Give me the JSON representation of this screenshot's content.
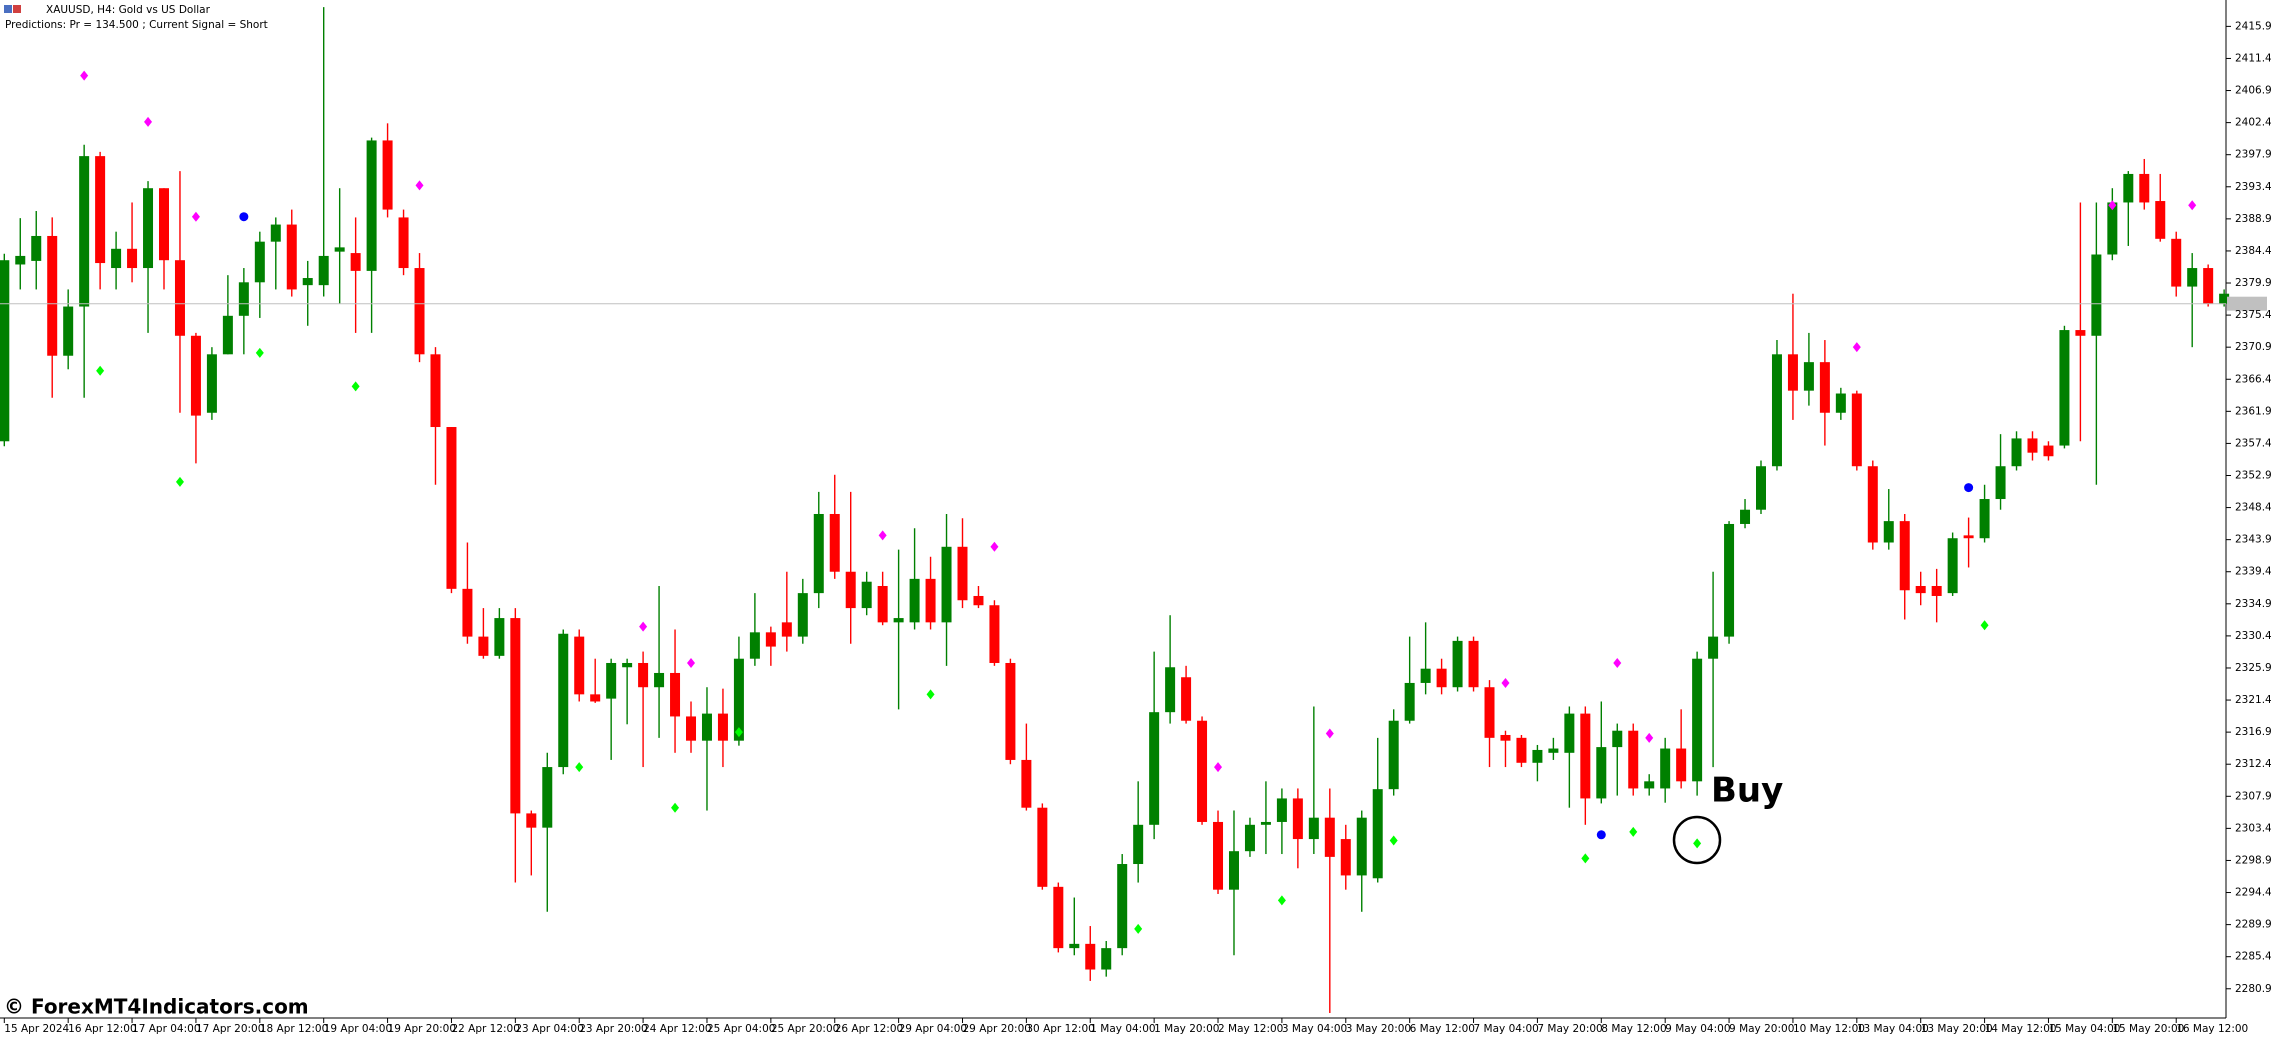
{
  "header": {
    "symbol": "XAUUSD, H4:  Gold vs US Dollar",
    "predictions": "Predictions: Pr = 134.500 ; Current Signal =  Short"
  },
  "annotation": "Buy",
  "watermark": "© ForexMT4Indicators.com",
  "chart_data": {
    "type": "candlestick",
    "up_color": "#008000",
    "down_color": "#ff0000",
    "categories": [
      "15 Apr 2024",
      null,
      null,
      null,
      "16 Apr 12:00",
      null,
      null,
      null,
      "17 Apr 04:00",
      null,
      null,
      null,
      "17 Apr 20:00",
      null,
      null,
      null,
      "18 Apr 12:00",
      null,
      null,
      null,
      "19 Apr 04:00",
      null,
      null,
      null,
      "19 Apr 20:00",
      null,
      null,
      null,
      "22 Apr 12:00",
      null,
      null,
      null,
      "23 Apr 04:00",
      null,
      null,
      null,
      "23 Apr 20:00",
      null,
      null,
      null,
      "24 Apr 12:00",
      null,
      null,
      null,
      "25 Apr 04:00",
      null,
      null,
      null,
      "25 Apr 20:00",
      null,
      null,
      null,
      "26 Apr 12:00",
      null,
      null,
      null,
      "29 Apr 04:00",
      null,
      null,
      null,
      "29 Apr 20:00",
      null,
      null,
      null,
      "30 Apr 12:00",
      null,
      null,
      null,
      "1 May 04:00",
      null,
      null,
      null,
      "1 May 20:00",
      null,
      null,
      null,
      "2 May 12:00",
      null,
      null,
      null,
      "3 May 04:00",
      null,
      null,
      null,
      "3 May 20:00",
      null,
      null,
      null,
      "6 May 12:00",
      null,
      null,
      null,
      "7 May 04:00",
      null,
      null,
      null,
      "7 May 20:00",
      null,
      null,
      null,
      "8 May 12:00",
      null,
      null,
      null,
      "9 May 04:00",
      null,
      null,
      null,
      "9 May 20:00",
      null,
      null,
      null,
      "10 May 12:00",
      null,
      null,
      null,
      "13 May 04:00",
      null,
      null,
      null,
      "13 May 20:00",
      null,
      null,
      null,
      "14 May 12:00",
      null,
      null,
      null,
      "15 May 04:00",
      null,
      null,
      null,
      "15 May 20:00",
      null,
      null,
      null,
      "16 May 12:00",
      null,
      null,
      null
    ],
    "open": [
      2357.7,
      2382.5,
      2383.0,
      2386.5,
      2369.7,
      2376.6,
      2397.7,
      2382.0,
      2384.7,
      2382.0,
      2393.2,
      2383.1,
      2372.5,
      2361.7,
      2369.9,
      2375.3,
      2380.0,
      2385.7,
      2388.1,
      2379.6,
      2379.6,
      2384.3,
      2384.1,
      2381.6,
      2399.9,
      2389.1,
      2382.0,
      2369.9,
      2359.7,
      2337.0,
      2330.3,
      2327.6,
      2332.9,
      2305.5,
      2303.5,
      2312.0,
      2330.3,
      2322.2,
      2321.6,
      2326.0,
      2326.6,
      2323.2,
      2325.2,
      2319.1,
      2315.7,
      2319.5,
      2315.7,
      2327.2,
      2330.9,
      2332.3,
      2330.3,
      2336.4,
      2347.5,
      2339.4,
      2334.3,
      2337.4,
      2332.3,
      2332.3,
      2338.4,
      2332.3,
      2342.9,
      2336.0,
      2334.7,
      2326.6,
      2313.0,
      2306.3,
      2295.2,
      2286.6,
      2287.2,
      2283.6,
      2286.6,
      2298.4,
      2303.9,
      2319.7,
      2324.6,
      2318.5,
      2304.3,
      2294.8,
      2300.2,
      2303.9,
      2304.3,
      2307.6,
      2301.9,
      2304.9,
      2301.9,
      2296.8,
      2296.4,
      2308.9,
      2318.5,
      2323.8,
      2325.8,
      2323.2,
      2329.7,
      2323.2,
      2316.5,
      2316.1,
      2312.6,
      2314.0,
      2314.0,
      2319.5,
      2307.6,
      2314.8,
      2317.1,
      2309.0,
      2309.0,
      2314.6,
      2310.0,
      2327.2,
      2330.3,
      2346.1,
      2348.1,
      2354.2,
      2369.9,
      2364.8,
      2368.8,
      2361.7,
      2364.4,
      2354.2,
      2343.5,
      2346.5,
      2337.4,
      2337.4,
      2336.4,
      2344.5,
      2344.1,
      2349.6,
      2354.2,
      2358.1,
      2357.1,
      2357.1,
      2373.3,
      2372.5,
      2383.9,
      2391.2,
      2395.2,
      2391.4,
      2386.1,
      2379.4,
      2382.0,
      2377.0
    ],
    "high": [
      2384.0,
      2389.0,
      2390.0,
      2389.1,
      2379.0,
      2399.3,
      2398.3,
      2387.1,
      2391.2,
      2394.2,
      2393.2,
      2395.6,
      2372.9,
      2370.9,
      2381.0,
      2382.0,
      2387.1,
      2389.1,
      2390.2,
      2383.0,
      2418.6,
      2393.2,
      2389.1,
      2400.3,
      2402.3,
      2390.2,
      2384.1,
      2370.9,
      2359.7,
      2343.5,
      2334.3,
      2334.3,
      2334.3,
      2305.9,
      2314.0,
      2331.3,
      2331.3,
      2327.2,
      2327.2,
      2327.2,
      2328.2,
      2337.4,
      2331.3,
      2321.2,
      2323.2,
      2323.0,
      2330.3,
      2336.4,
      2331.7,
      2339.4,
      2338.4,
      2350.6,
      2353.0,
      2350.6,
      2339.4,
      2339.4,
      2342.5,
      2345.5,
      2341.5,
      2347.5,
      2346.9,
      2337.4,
      2335.4,
      2327.2,
      2318.1,
      2306.9,
      2295.8,
      2293.7,
      2289.7,
      2287.6,
      2299.8,
      2310.0,
      2328.2,
      2333.3,
      2326.2,
      2319.1,
      2305.9,
      2305.9,
      2304.9,
      2310.0,
      2309.0,
      2309.0,
      2320.5,
      2309.0,
      2303.9,
      2305.9,
      2316.1,
      2320.1,
      2330.3,
      2332.3,
      2327.2,
      2330.3,
      2330.3,
      2324.2,
      2317.1,
      2316.5,
      2315.1,
      2316.1,
      2320.5,
      2320.5,
      2321.2,
      2318.1,
      2318.1,
      2311.0,
      2316.1,
      2320.1,
      2328.2,
      2339.4,
      2346.5,
      2349.6,
      2355.0,
      2371.9,
      2378.4,
      2372.9,
      2371.9,
      2365.2,
      2364.8,
      2355.0,
      2351.0,
      2347.5,
      2339.4,
      2339.8,
      2344.9,
      2347.0,
      2351.6,
      2358.7,
      2359.1,
      2359.1,
      2357.7,
      2373.9,
      2391.2,
      2391.2,
      2393.2,
      2395.6,
      2397.3,
      2395.2,
      2387.1,
      2384.1,
      2382.5,
      2379.0
    ],
    "low": [
      2357.0,
      2379.0,
      2379.0,
      2363.8,
      2367.8,
      2363.8,
      2379.0,
      2379.0,
      2380.0,
      2372.9,
      2379.0,
      2361.7,
      2354.6,
      2360.7,
      2369.9,
      2369.9,
      2375.0,
      2379.0,
      2378.0,
      2373.9,
      2378.0,
      2377.0,
      2372.9,
      2372.9,
      2389.1,
      2381.0,
      2368.8,
      2351.6,
      2336.4,
      2329.3,
      2327.2,
      2327.2,
      2295.8,
      2296.8,
      2291.7,
      2311.0,
      2321.2,
      2321.0,
      2313.0,
      2318.0,
      2312.0,
      2316.1,
      2314.0,
      2314.0,
      2305.9,
      2312.0,
      2315.0,
      2326.2,
      2326.2,
      2328.2,
      2329.3,
      2334.3,
      2338.4,
      2329.3,
      2333.3,
      2331.9,
      2320.1,
      2331.3,
      2331.3,
      2326.2,
      2334.3,
      2334.3,
      2326.2,
      2312.4,
      2305.9,
      2294.8,
      2286.0,
      2285.6,
      2282.0,
      2282.6,
      2285.6,
      2295.8,
      2301.9,
      2318.1,
      2318.1,
      2303.9,
      2294.2,
      2285.6,
      2299.4,
      2299.8,
      2299.8,
      2297.8,
      2299.8,
      2277.5,
      2294.8,
      2291.7,
      2295.8,
      2308.0,
      2318.1,
      2322.2,
      2322.2,
      2322.6,
      2322.6,
      2312.0,
      2312.0,
      2312.0,
      2310.0,
      2313.0,
      2306.3,
      2303.9,
      2306.9,
      2308.0,
      2308.0,
      2308.0,
      2307.0,
      2309.0,
      2308.0,
      2312.0,
      2329.3,
      2345.5,
      2347.5,
      2353.6,
      2360.7,
      2362.7,
      2357.1,
      2360.7,
      2353.6,
      2342.5,
      2342.5,
      2332.7,
      2334.7,
      2332.3,
      2336.0,
      2340.0,
      2343.5,
      2348.1,
      2353.6,
      2355.0,
      2355.0,
      2356.7,
      2357.7,
      2351.6,
      2383.1,
      2385.1,
      2390.2,
      2385.7,
      2378.0,
      2370.9,
      2376.6,
      2376.6
    ],
    "close": [
      2383.1,
      2383.7,
      2386.5,
      2369.7,
      2376.6,
      2397.7,
      2382.7,
      2384.7,
      2382.0,
      2393.2,
      2383.1,
      2372.5,
      2361.3,
      2369.9,
      2375.3,
      2380.0,
      2385.7,
      2388.1,
      2379.0,
      2380.6,
      2383.7,
      2384.9,
      2381.6,
      2399.9,
      2390.2,
      2382.0,
      2369.9,
      2359.7,
      2337.0,
      2330.3,
      2327.6,
      2332.9,
      2305.5,
      2303.5,
      2312.0,
      2330.7,
      2322.2,
      2321.2,
      2326.6,
      2326.6,
      2323.2,
      2325.2,
      2319.1,
      2315.7,
      2319.5,
      2315.7,
      2327.2,
      2330.9,
      2328.9,
      2330.3,
      2336.4,
      2347.5,
      2339.4,
      2334.3,
      2338.0,
      2332.3,
      2332.9,
      2338.4,
      2332.3,
      2342.9,
      2335.4,
      2334.7,
      2326.6,
      2313.0,
      2306.3,
      2295.2,
      2286.6,
      2287.2,
      2283.6,
      2286.6,
      2298.4,
      2303.9,
      2319.7,
      2326.0,
      2318.5,
      2304.3,
      2294.8,
      2300.2,
      2303.9,
      2304.3,
      2307.6,
      2301.9,
      2304.9,
      2299.4,
      2296.8,
      2304.9,
      2308.9,
      2318.5,
      2323.8,
      2325.8,
      2323.2,
      2329.7,
      2323.2,
      2316.1,
      2315.7,
      2312.6,
      2314.4,
      2314.6,
      2319.5,
      2307.6,
      2314.8,
      2317.1,
      2309.0,
      2310.0,
      2314.6,
      2310.0,
      2327.2,
      2330.3,
      2346.1,
      2348.1,
      2354.2,
      2369.9,
      2364.8,
      2368.8,
      2361.7,
      2364.4,
      2354.2,
      2343.5,
      2346.5,
      2336.8,
      2336.4,
      2336.0,
      2344.1,
      2344.1,
      2349.6,
      2354.2,
      2358.1,
      2356.1,
      2355.6,
      2373.3,
      2372.5,
      2383.9,
      2391.2,
      2395.2,
      2391.2,
      2386.1,
      2379.4,
      2382.0,
      2377.0,
      2378.4
    ],
    "signals": [
      {
        "color": "#ff00ff",
        "shape": "diamond",
        "values": [
          null,
          null,
          null,
          null,
          null,
          2409.0,
          null,
          null,
          null,
          2402.5,
          null,
          null,
          2389.2,
          null,
          null,
          null,
          null,
          null,
          null,
          null,
          null,
          null,
          null,
          null,
          null,
          null,
          2393.6,
          null,
          null,
          null,
          null,
          null,
          null,
          null,
          null,
          null,
          null,
          null,
          null,
          null,
          2331.7,
          null,
          null,
          2326.6,
          null,
          null,
          null,
          null,
          null,
          null,
          null,
          null,
          null,
          null,
          null,
          2344.5,
          null,
          null,
          null,
          null,
          null,
          null,
          2342.9,
          null,
          null,
          null,
          null,
          null,
          null,
          null,
          null,
          null,
          null,
          null,
          null,
          null,
          2312.0,
          null,
          null,
          null,
          null,
          null,
          null,
          2316.7,
          null,
          null,
          null,
          null,
          null,
          null,
          null,
          null,
          null,
          null,
          2323.8,
          null,
          null,
          null,
          null,
          null,
          null,
          2326.6,
          null,
          2316.1,
          null,
          null,
          null,
          null,
          null,
          null,
          null,
          null,
          null,
          null,
          null,
          null,
          2370.9,
          null,
          null,
          null,
          null,
          null,
          null,
          null,
          null,
          null,
          null,
          null,
          null,
          null,
          null,
          null,
          2390.8,
          null,
          null,
          null,
          null,
          2390.8,
          null,
          null
        ]
      },
      {
        "color": "#00ff00",
        "shape": "diamond",
        "values": [
          null,
          null,
          null,
          null,
          null,
          null,
          2367.6,
          null,
          null,
          null,
          null,
          2352.0,
          null,
          null,
          null,
          null,
          2370.1,
          null,
          null,
          null,
          null,
          null,
          2365.4,
          null,
          null,
          null,
          null,
          null,
          null,
          null,
          null,
          null,
          null,
          null,
          null,
          null,
          2312.0,
          null,
          null,
          null,
          null,
          null,
          2306.3,
          null,
          null,
          null,
          2316.9,
          null,
          null,
          null,
          null,
          null,
          null,
          null,
          null,
          null,
          null,
          null,
          2322.2,
          null,
          null,
          null,
          null,
          null,
          null,
          null,
          null,
          null,
          null,
          null,
          null,
          2289.3,
          null,
          null,
          null,
          null,
          null,
          null,
          null,
          null,
          2293.3,
          null,
          null,
          null,
          null,
          null,
          null,
          2301.7,
          null,
          null,
          null,
          null,
          null,
          null,
          null,
          null,
          null,
          null,
          null,
          2299.2,
          null,
          null,
          2302.9,
          null,
          null,
          null,
          2301.3,
          null,
          null,
          null,
          null,
          null,
          null,
          null,
          null,
          null,
          null,
          null,
          null,
          null,
          null,
          null,
          null,
          null,
          2331.9,
          null,
          null,
          null,
          null,
          null,
          null,
          null,
          null,
          null,
          null,
          null,
          null,
          null,
          null,
          null
        ]
      },
      {
        "color": "#0000ff",
        "shape": "circle",
        "values": [
          null,
          null,
          null,
          null,
          null,
          null,
          null,
          null,
          null,
          null,
          null,
          null,
          null,
          null,
          null,
          2389.2,
          null,
          null,
          null,
          null,
          null,
          null,
          null,
          null,
          null,
          null,
          null,
          null,
          null,
          null,
          null,
          null,
          null,
          null,
          null,
          null,
          null,
          null,
          null,
          null,
          null,
          null,
          null,
          null,
          null,
          null,
          null,
          null,
          null,
          null,
          null,
          null,
          null,
          null,
          null,
          null,
          null,
          null,
          null,
          null,
          null,
          null,
          null,
          null,
          null,
          null,
          null,
          null,
          null,
          null,
          null,
          null,
          null,
          null,
          null,
          null,
          null,
          null,
          null,
          null,
          null,
          null,
          null,
          null,
          null,
          null,
          null,
          null,
          null,
          null,
          null,
          null,
          null,
          null,
          null,
          null,
          null,
          null,
          null,
          null,
          2302.5,
          null,
          null,
          null,
          null,
          null,
          null,
          null,
          null,
          null,
          null,
          null,
          null,
          null,
          null,
          null,
          null,
          null,
          null,
          null,
          null,
          null,
          null,
          2351.2,
          null,
          null,
          null,
          null,
          null,
          null,
          null,
          null,
          null,
          null,
          null,
          null,
          null,
          null,
          null,
          null
        ]
      }
    ],
    "current_price": 2377.0,
    "ylim": [
      2276.8,
      2419.6
    ],
    "yticks": [
      {
        "value": 2415.9,
        "label": "2415.90"
      },
      {
        "value": 2411.4,
        "label": "2411.40"
      },
      {
        "value": 2406.9,
        "label": "2406.90"
      },
      {
        "value": 2402.4,
        "label": "2402.40"
      },
      {
        "value": 2397.9,
        "label": "2397.90"
      },
      {
        "value": 2393.4,
        "label": "2393.40"
      },
      {
        "value": 2388.9,
        "label": "2388.90"
      },
      {
        "value": 2384.4,
        "label": "2384.40"
      },
      {
        "value": 2379.9,
        "label": "2379.90"
      },
      {
        "value": 2375.4,
        "label": "2375.40"
      },
      {
        "value": 2370.9,
        "label": "2370.90"
      },
      {
        "value": 2366.4,
        "label": "2366.40"
      },
      {
        "value": 2361.9,
        "label": "2361.90"
      },
      {
        "value": 2357.4,
        "label": "2357.40"
      },
      {
        "value": 2352.9,
        "label": "2352.90"
      },
      {
        "value": 2348.4,
        "label": "2348.40"
      },
      {
        "value": 2343.9,
        "label": "2343.90"
      },
      {
        "value": 2339.4,
        "label": "2339.40"
      },
      {
        "value": 2334.9,
        "label": "2334.90"
      },
      {
        "value": 2330.4,
        "label": "2330.40"
      },
      {
        "value": 2325.9,
        "label": "2325.90"
      },
      {
        "value": 2321.4,
        "label": "2321.40"
      },
      {
        "value": 2316.9,
        "label": "2316.90"
      },
      {
        "value": 2312.4,
        "label": "2312.40"
      },
      {
        "value": 2307.9,
        "label": "2307.90"
      },
      {
        "value": 2303.4,
        "label": "2303.40"
      },
      {
        "value": 2298.9,
        "label": "2298.90"
      },
      {
        "value": 2294.4,
        "label": "2294.40"
      },
      {
        "value": 2289.9,
        "label": "2289.90"
      },
      {
        "value": 2285.4,
        "label": "2285.40"
      },
      {
        "value": 2280.9,
        "label": "2280.90"
      }
    ]
  }
}
